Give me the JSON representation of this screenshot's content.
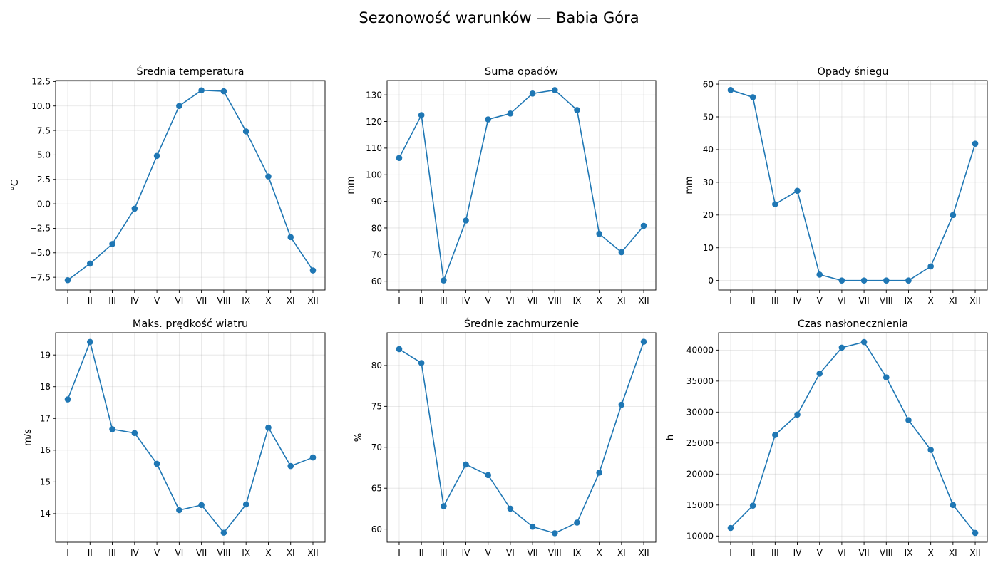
{
  "figure": {
    "title": "Sezonowość warunków — Babia Góra",
    "line_color": "#1f77b4"
  },
  "chart_data": [
    {
      "type": "line",
      "title": "Średnia temperatura",
      "ylabel": "°C",
      "categories": [
        "I",
        "II",
        "III",
        "IV",
        "V",
        "VI",
        "VII",
        "VIII",
        "IX",
        "X",
        "XI",
        "XII"
      ],
      "values": [
        -7.8,
        -6.1,
        -4.1,
        -0.5,
        4.9,
        10.0,
        11.6,
        11.5,
        7.4,
        2.8,
        -3.4,
        -6.8
      ],
      "ylim": [
        -8.8,
        12.6
      ],
      "yticks": [
        -7.5,
        -5.0,
        -2.5,
        0.0,
        2.5,
        5.0,
        7.5,
        10.0,
        12.5
      ],
      "yticklabels": [
        "−7.5",
        "−5.0",
        "−2.5",
        "0.0",
        "2.5",
        "5.0",
        "7.5",
        "10.0",
        "12.5"
      ],
      "grid": true
    },
    {
      "type": "line",
      "title": "Suma opadów",
      "ylabel": "mm",
      "categories": [
        "I",
        "II",
        "III",
        "IV",
        "V",
        "VI",
        "VII",
        "VIII",
        "IX",
        "X",
        "XI",
        "XII"
      ],
      "values": [
        106.3,
        122.4,
        60.3,
        82.8,
        120.8,
        123.0,
        130.5,
        131.8,
        124.3,
        77.8,
        70.9,
        80.8
      ],
      "ylim": [
        56.7,
        135.4
      ],
      "yticks": [
        60,
        70,
        80,
        90,
        100,
        110,
        120,
        130
      ],
      "yticklabels": [
        "60",
        "70",
        "80",
        "90",
        "100",
        "110",
        "120",
        "130"
      ],
      "grid": true
    },
    {
      "type": "line",
      "title": "Opady śniegu",
      "ylabel": "mm",
      "categories": [
        "I",
        "II",
        "III",
        "IV",
        "V",
        "VI",
        "VII",
        "VIII",
        "IX",
        "X",
        "XI",
        "XII"
      ],
      "values": [
        58.2,
        56.0,
        23.3,
        27.4,
        1.8,
        0.0,
        0.0,
        0.0,
        0.0,
        4.3,
        20.0,
        41.8
      ],
      "ylim": [
        -2.9,
        61.1
      ],
      "yticks": [
        0,
        10,
        20,
        30,
        40,
        50,
        60
      ],
      "yticklabels": [
        "0",
        "10",
        "20",
        "30",
        "40",
        "50",
        "60"
      ],
      "grid": true
    },
    {
      "type": "line",
      "title": "Maks. prędkość wiatru",
      "ylabel": "m/s",
      "categories": [
        "I",
        "II",
        "III",
        "IV",
        "V",
        "VI",
        "VII",
        "VIII",
        "IX",
        "X",
        "XI",
        "XII"
      ],
      "values": [
        17.6,
        19.41,
        16.66,
        16.54,
        15.57,
        14.11,
        14.27,
        13.4,
        14.29,
        16.71,
        15.5,
        15.77
      ],
      "ylim": [
        13.1,
        19.7
      ],
      "yticks": [
        14,
        15,
        16,
        17,
        18,
        19
      ],
      "yticklabels": [
        "14",
        "15",
        "16",
        "17",
        "18",
        "19"
      ],
      "grid": true
    },
    {
      "type": "line",
      "title": "Średnie zachmurzenie",
      "ylabel": "%",
      "categories": [
        "I",
        "II",
        "III",
        "IV",
        "V",
        "VI",
        "VII",
        "VIII",
        "IX",
        "X",
        "XI",
        "XII"
      ],
      "values": [
        82.0,
        80.3,
        62.8,
        67.9,
        66.6,
        62.5,
        60.3,
        59.5,
        60.8,
        66.9,
        75.2,
        82.9
      ],
      "ylim": [
        58.4,
        84.0
      ],
      "yticks": [
        60,
        65,
        70,
        75,
        80
      ],
      "yticklabels": [
        "60",
        "65",
        "70",
        "75",
        "80"
      ],
      "grid": true
    },
    {
      "type": "line",
      "title": "Czas nasłonecznienia",
      "ylabel": "h",
      "categories": [
        "I",
        "II",
        "III",
        "IV",
        "V",
        "VI",
        "VII",
        "VIII",
        "IX",
        "X",
        "XI",
        "XII"
      ],
      "values": [
        11300,
        14900,
        26300,
        29600,
        36200,
        40400,
        41300,
        35600,
        28700,
        23900,
        15000,
        10500
      ],
      "ylim": [
        9000,
        42800
      ],
      "yticks": [
        10000,
        15000,
        20000,
        25000,
        30000,
        35000,
        40000
      ],
      "yticklabels": [
        "10000",
        "15000",
        "20000",
        "25000",
        "30000",
        "35000",
        "40000"
      ],
      "grid": true
    }
  ]
}
